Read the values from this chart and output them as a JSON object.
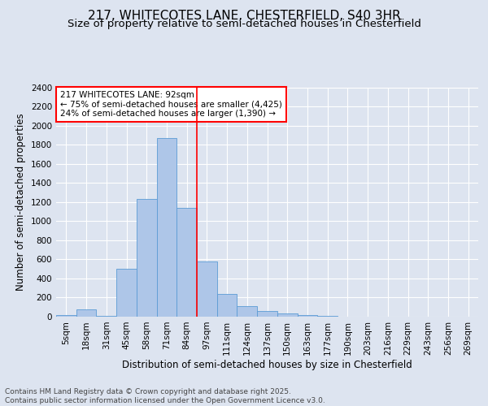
{
  "title": "217, WHITECOTES LANE, CHESTERFIELD, S40 3HR",
  "subtitle": "Size of property relative to semi-detached houses in Chesterfield",
  "xlabel": "Distribution of semi-detached houses by size in Chesterfield",
  "ylabel": "Number of semi-detached properties",
  "footnote": "Contains HM Land Registry data © Crown copyright and database right 2025.\nContains public sector information licensed under the Open Government Licence v3.0.",
  "bar_labels": [
    "5sqm",
    "18sqm",
    "31sqm",
    "45sqm",
    "58sqm",
    "71sqm",
    "84sqm",
    "97sqm",
    "111sqm",
    "124sqm",
    "137sqm",
    "150sqm",
    "163sqm",
    "177sqm",
    "190sqm",
    "203sqm",
    "216sqm",
    "229sqm",
    "243sqm",
    "256sqm",
    "269sqm"
  ],
  "bar_values": [
    15,
    75,
    5,
    500,
    1230,
    1870,
    1140,
    575,
    240,
    110,
    60,
    37,
    20,
    10,
    0,
    0,
    0,
    0,
    0,
    0,
    0
  ],
  "bar_color": "#aec6e8",
  "bar_edge_color": "#5b9bd5",
  "property_line_x": 6.5,
  "red_line_color": "#ff0000",
  "annotation_text": "217 WHITECOTES LANE: 92sqm\n← 75% of semi-detached houses are smaller (4,425)\n24% of semi-detached houses are larger (1,390) →",
  "annotation_box_color": "#ffffff",
  "annotation_box_edge": "#ff0000",
  "ylim": [
    0,
    2400
  ],
  "yticks": [
    0,
    200,
    400,
    600,
    800,
    1000,
    1200,
    1400,
    1600,
    1800,
    2000,
    2200,
    2400
  ],
  "background_color": "#dde4f0",
  "plot_background": "#dde4f0",
  "grid_color": "#ffffff",
  "title_fontsize": 11,
  "subtitle_fontsize": 9.5,
  "axis_label_fontsize": 8.5,
  "tick_fontsize": 7.5,
  "footnote_fontsize": 6.5
}
